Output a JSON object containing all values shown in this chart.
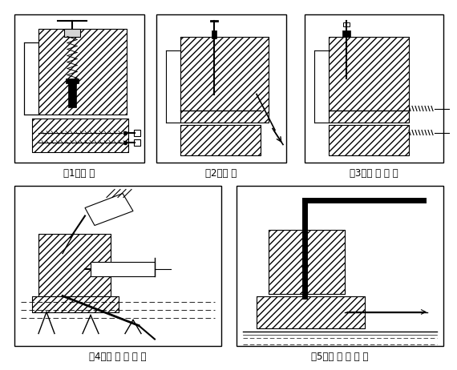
{
  "background_color": "#ffffff",
  "labels": [
    "（1）成 孔",
    "（2）清 孔",
    "（3）丙 酮 清 洗",
    "（4）注 入 胶 粘 剂",
    "（5）插 入 连 接 件"
  ]
}
